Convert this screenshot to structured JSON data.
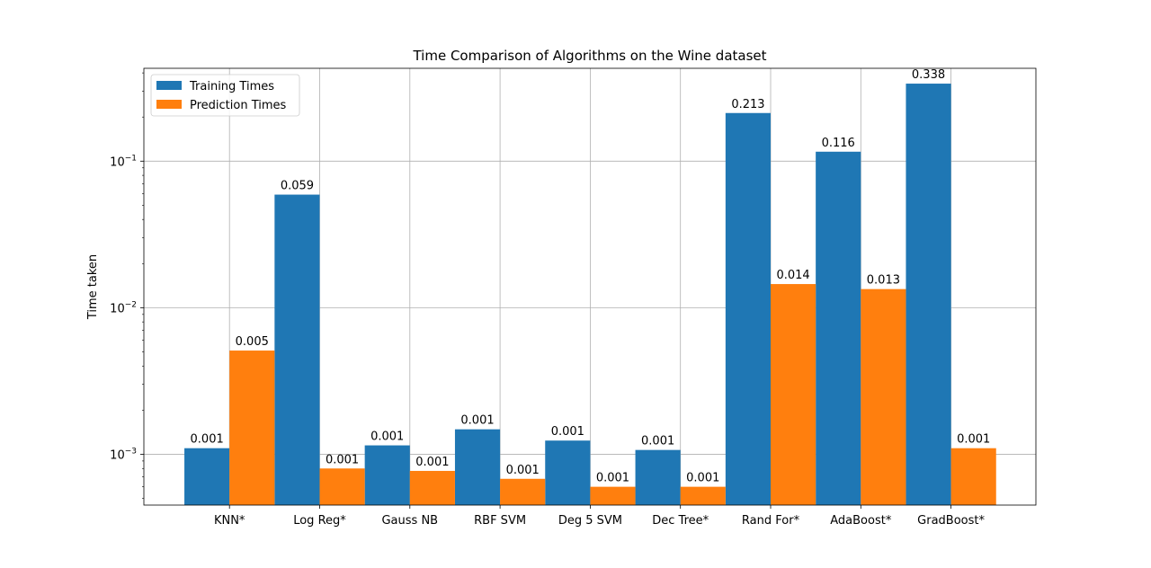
{
  "chart_data": {
    "type": "bar",
    "title": "Time Comparison of Algorithms on the Wine dataset",
    "xlabel": "",
    "ylabel": "Time taken",
    "yscale": "log",
    "ylim": [
      0.00045,
      0.43
    ],
    "yticks": [
      {
        "value": 0.001,
        "base": "10",
        "exp": "−3"
      },
      {
        "value": 0.01,
        "base": "10",
        "exp": "−2"
      },
      {
        "value": 0.1,
        "base": "10",
        "exp": "−1"
      }
    ],
    "grid": true,
    "legend_position": "top-left",
    "categories": [
      "KNN*",
      "Log Reg*",
      "Gauss NB",
      "RBF SVM",
      "Deg 5 SVM",
      "Dec Tree*",
      "Rand For*",
      "AdaBoost*",
      "GradBoost*"
    ],
    "series": [
      {
        "name": "Training Times",
        "color": "#1f77b4",
        "values": [
          0.0011,
          0.0591,
          0.00115,
          0.00148,
          0.00124,
          0.00107,
          0.213,
          0.116,
          0.338
        ],
        "labels": [
          "0.001",
          "0.059",
          "0.001",
          "0.001",
          "0.001",
          "0.001",
          "0.213",
          "0.116",
          "0.338"
        ]
      },
      {
        "name": "Prediction Times",
        "color": "#ff7f0e",
        "values": [
          0.0051,
          0.0008,
          0.00077,
          0.00068,
          0.0006,
          0.0006,
          0.0145,
          0.0134,
          0.0011
        ],
        "labels": [
          "0.005",
          "0.001",
          "0.001",
          "0.001",
          "0.001",
          "0.001",
          "0.014",
          "0.013",
          "0.001"
        ]
      }
    ]
  }
}
